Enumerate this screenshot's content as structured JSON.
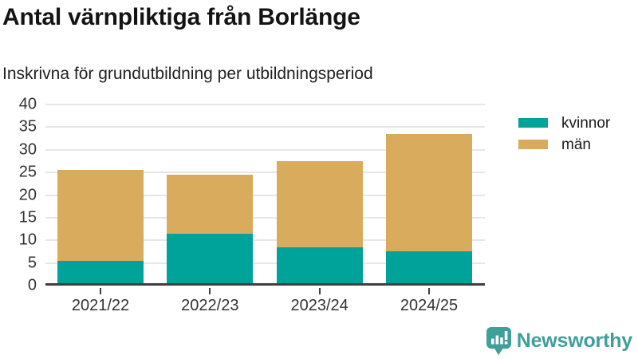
{
  "header": {
    "title": "Antal värnpliktiga från Borlänge",
    "subtitle": "Inskrivna för grundutbildning per utbildningsperiod"
  },
  "chart_data": {
    "type": "bar",
    "stacked": true,
    "title": "Antal värnpliktiga från Borlänge",
    "subtitle": "Inskrivna för grundutbildning per utbildningsperiod",
    "categories": [
      "2021/22",
      "2022/23",
      "2023/24",
      "2024/25"
    ],
    "series": [
      {
        "name": "kvinnor",
        "color": "#00a39a",
        "values": [
          5,
          11,
          8,
          7
        ]
      },
      {
        "name": "män",
        "color": "#d8ac5c",
        "values": [
          20,
          13,
          19,
          26
        ]
      }
    ],
    "stack_totals": [
      25,
      24,
      27,
      33
    ],
    "ylim": [
      0,
      40
    ],
    "yticks": [
      0,
      5,
      10,
      15,
      20,
      25,
      30,
      35,
      40
    ],
    "xlabel": "",
    "ylabel": "",
    "grid": true,
    "legend_position": "right-top"
  },
  "footer": {
    "brand": "Newsworthy",
    "brand_color": "#3f9f99",
    "logo_icon": "bar-chart-speech-bubble-icon"
  },
  "colors": {
    "kvinnor": "#00a39a",
    "man": "#d8ac5c",
    "axis_text": "#333333",
    "gridline": "#e6e6e6",
    "baseline": "#3f3f3f"
  }
}
